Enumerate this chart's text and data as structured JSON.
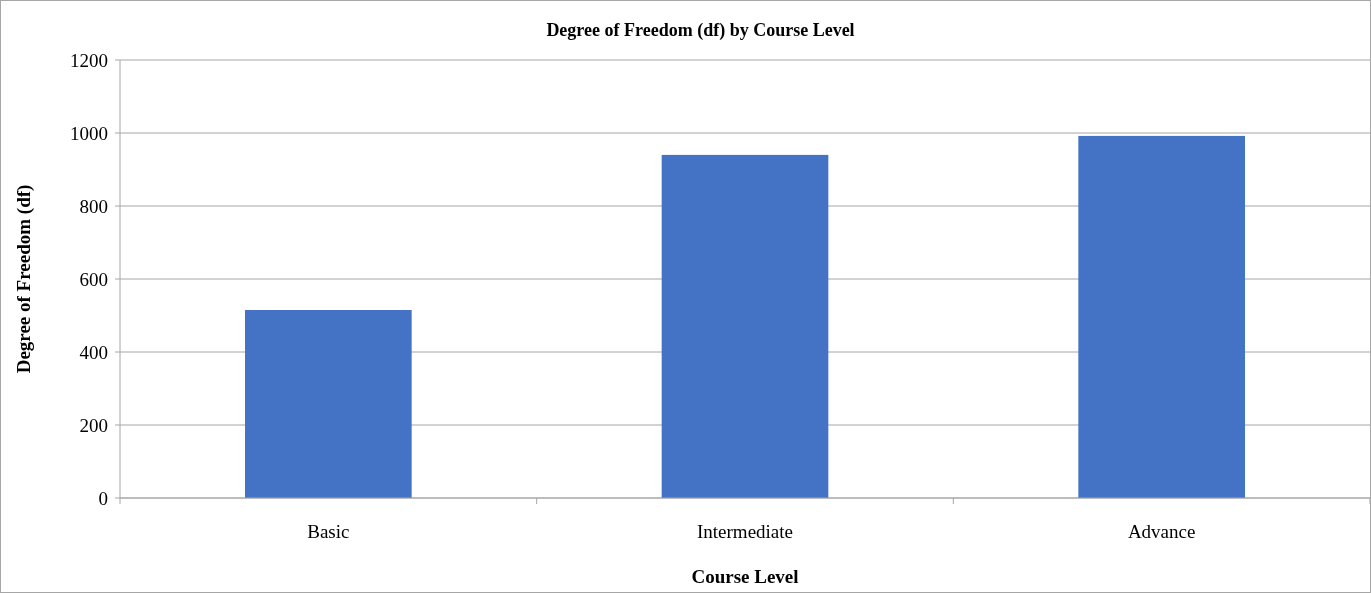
{
  "chart_data": {
    "type": "bar",
    "title": "Degree of Freedom (df) by Course Level",
    "xlabel": "Course Level",
    "ylabel": "Degree of Freedom (df)",
    "categories": [
      "Basic",
      "Intermediate",
      "Advance"
    ],
    "values": [
      515,
      940,
      992
    ],
    "color": "#4472c4",
    "ylim": [
      0,
      1200
    ],
    "yticks": [
      0,
      200,
      400,
      600,
      800,
      1000,
      1200
    ],
    "grid": "y"
  }
}
